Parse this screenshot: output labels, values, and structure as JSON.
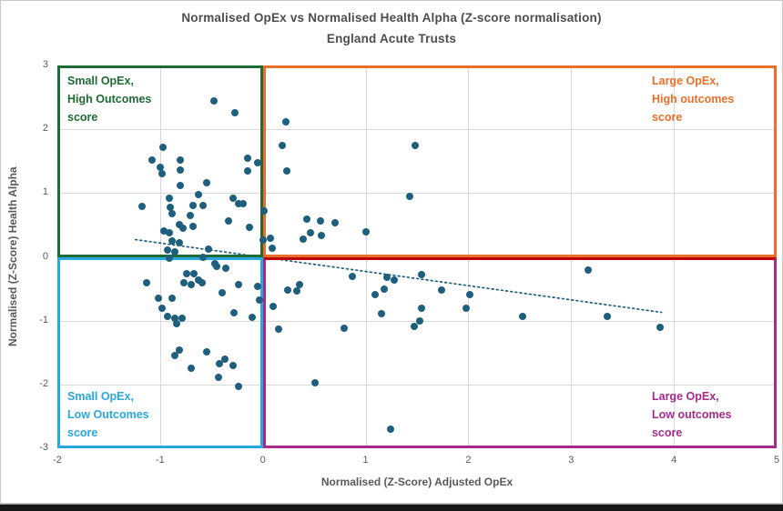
{
  "title": {
    "line1": "Normalised OpEx vs Normalised Health Alpha (Z-score normalisation)",
    "line2": "England Acute Trusts"
  },
  "axes": {
    "x": {
      "label": "Normalised (Z-Score) Adjusted OpEx",
      "min": -2,
      "max": 5,
      "ticks": [
        -2,
        -1,
        0,
        1,
        2,
        3,
        4,
        5
      ],
      "gridlines": [
        -1,
        0,
        1,
        2,
        3,
        4
      ]
    },
    "y": {
      "label": "Normalised (Z-Score) Health Alpha",
      "min": -3,
      "max": 3,
      "ticks": [
        3,
        2,
        1,
        0,
        -1,
        -2,
        -3
      ],
      "gridlines": [
        2,
        1,
        0,
        -1,
        -2
      ]
    }
  },
  "quadrants": [
    {
      "id": "small-opex-high-outcomes",
      "corner": "top-left",
      "lines": [
        "Small OpEx,",
        "High Outcomes",
        "score"
      ],
      "color": "#1e6b35",
      "top_border": "#1e6b35"
    },
    {
      "id": "large-opex-high-outcomes",
      "corner": "top-right",
      "lines": [
        "Large OpEx,",
        "High outcomes",
        "score"
      ],
      "color": "#e8702a",
      "top_border": "#e8702a"
    },
    {
      "id": "small-opex-low-outcomes",
      "corner": "bottom-left",
      "lines": [
        "Small OpEx,",
        "Low Outcomes",
        "score"
      ],
      "color": "#29a8df",
      "top_border": "#29a8df"
    },
    {
      "id": "large-opex-low-outcomes",
      "corner": "bottom-right",
      "lines": [
        "Large OpEx,",
        "Low outcomes",
        "score"
      ],
      "color": "#a62b8c",
      "top_border": "#c00000"
    }
  ],
  "colors": {
    "marker": "#1f5f7e",
    "trendline": "#1f5f7e",
    "gridline": "#d9d9d9",
    "title_text": "#4d4d4d",
    "axis_text": "#595959"
  },
  "chart_data": {
    "type": "scatter",
    "title": "Normalised OpEx vs Normalised Health Alpha (Z-score normalisation)",
    "subtitle": "England Acute Trusts",
    "xlabel": "Normalised (Z-Score) Adjusted OpEx",
    "ylabel": "Normalised (Z-Score) Health Alpha",
    "xlim": [
      -2,
      5
    ],
    "ylim": [
      -3,
      3
    ],
    "grid": true,
    "marker_color": "#1f5f7e",
    "points": [
      [
        -0.48,
        2.44
      ],
      [
        -0.27,
        2.26
      ],
      [
        -0.97,
        1.72
      ],
      [
        -1.08,
        1.52
      ],
      [
        -1.0,
        1.4
      ],
      [
        -0.98,
        1.3
      ],
      [
        -0.8,
        1.52
      ],
      [
        -0.8,
        1.36
      ],
      [
        -0.15,
        1.54
      ],
      [
        -0.05,
        1.47
      ],
      [
        -0.15,
        1.34
      ],
      [
        -0.8,
        1.12
      ],
      [
        -0.55,
        1.16
      ],
      [
        -0.63,
        0.98
      ],
      [
        -0.91,
        0.92
      ],
      [
        -0.29,
        0.92
      ],
      [
        -0.24,
        0.84
      ],
      [
        -1.18,
        0.79
      ],
      [
        -0.9,
        0.78
      ],
      [
        -0.68,
        0.8
      ],
      [
        -0.58,
        0.81
      ],
      [
        -0.19,
        0.83
      ],
      [
        -0.88,
        0.67
      ],
      [
        -0.71,
        0.65
      ],
      [
        -0.33,
        0.56
      ],
      [
        -0.81,
        0.5
      ],
      [
        -0.78,
        0.45
      ],
      [
        -0.68,
        0.48
      ],
      [
        -0.96,
        0.4
      ],
      [
        -0.91,
        0.38
      ],
      [
        -0.88,
        0.25
      ],
      [
        -0.81,
        0.22
      ],
      [
        -0.93,
        0.11
      ],
      [
        -0.86,
        0.08
      ],
      [
        -0.53,
        0.12
      ],
      [
        -0.13,
        0.46
      ],
      [
        -0.91,
        -0.02
      ],
      [
        -0.58,
        0.0
      ],
      [
        0.22,
        2.11
      ],
      [
        0.19,
        1.74
      ],
      [
        1.48,
        1.75
      ],
      [
        0.23,
        1.35
      ],
      [
        1.43,
        0.95
      ],
      [
        0.01,
        0.72
      ],
      [
        0.43,
        0.59
      ],
      [
        0.56,
        0.57
      ],
      [
        0.7,
        0.54
      ],
      [
        0.46,
        0.38
      ],
      [
        0.57,
        0.34
      ],
      [
        0.39,
        0.28
      ],
      [
        1.0,
        0.39
      ],
      [
        0.0,
        0.26
      ],
      [
        0.07,
        0.29
      ],
      [
        0.09,
        0.13
      ],
      [
        -1.13,
        -0.41
      ],
      [
        -1.02,
        -0.65
      ],
      [
        -0.88,
        -0.65
      ],
      [
        -0.98,
        -0.8
      ],
      [
        -0.93,
        -0.94
      ],
      [
        -0.86,
        -0.96
      ],
      [
        -0.79,
        -0.96
      ],
      [
        -0.84,
        -1.05
      ],
      [
        -0.74,
        -0.26
      ],
      [
        -0.67,
        -0.27
      ],
      [
        -0.77,
        -0.41
      ],
      [
        -0.7,
        -0.44
      ],
      [
        -0.63,
        -0.37
      ],
      [
        -0.59,
        -0.41
      ],
      [
        -0.45,
        -0.15
      ],
      [
        -0.36,
        -0.18
      ],
      [
        -0.4,
        -0.57
      ],
      [
        -0.24,
        -0.43
      ],
      [
        -0.05,
        -0.46
      ],
      [
        -0.03,
        -0.67
      ],
      [
        -0.28,
        -0.87
      ],
      [
        -0.1,
        -0.95
      ],
      [
        -0.81,
        -1.46
      ],
      [
        -0.86,
        -1.55
      ],
      [
        -0.55,
        -1.49
      ],
      [
        -0.7,
        -1.75
      ],
      [
        -0.42,
        -1.67
      ],
      [
        -0.37,
        -1.6
      ],
      [
        -0.29,
        -1.71
      ],
      [
        -0.43,
        -1.89
      ],
      [
        -0.24,
        -2.03
      ],
      [
        -0.47,
        -0.1
      ],
      [
        0.87,
        -0.3
      ],
      [
        1.21,
        -0.32
      ],
      [
        1.28,
        -0.37
      ],
      [
        1.54,
        -0.28
      ],
      [
        0.36,
        -0.43
      ],
      [
        0.24,
        -0.52
      ],
      [
        0.33,
        -0.53
      ],
      [
        1.18,
        -0.5
      ],
      [
        1.09,
        -0.59
      ],
      [
        1.74,
        -0.52
      ],
      [
        2.01,
        -0.59
      ],
      [
        0.1,
        -0.78
      ],
      [
        1.54,
        -0.8
      ],
      [
        1.98,
        -0.8
      ],
      [
        1.15,
        -0.89
      ],
      [
        1.53,
        -1.01
      ],
      [
        1.47,
        -1.09
      ],
      [
        0.15,
        -1.14
      ],
      [
        0.79,
        -1.12
      ],
      [
        0.51,
        -1.98
      ],
      [
        1.24,
        -2.7
      ],
      [
        3.17,
        -0.21
      ],
      [
        2.53,
        -0.93
      ],
      [
        3.35,
        -0.94
      ],
      [
        3.87,
        -1.1
      ]
    ],
    "trendline": {
      "style": "dotted",
      "x1": -1.24,
      "y1": 0.27,
      "x2": 3.88,
      "y2": -0.87
    },
    "legend": null
  }
}
